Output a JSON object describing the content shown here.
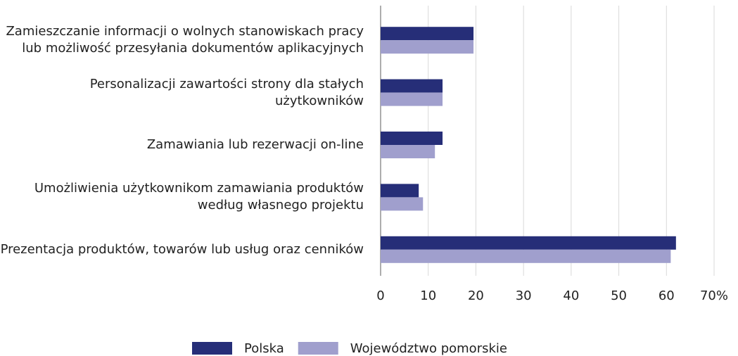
{
  "chart_data": {
    "type": "hbar",
    "categories": [
      "Zamieszczanie informacji o wolnych stanowiskach pracy lub możliwość przesyłania dokumentów aplikacyjnych",
      "Personalizacji zawartości strony dla stałych użytkowników",
      "Zamawiania lub rezerwacji on-line",
      "Umożliwienia użytkownikom zamawiania produktów według własnego projektu",
      "Prezentacja produktów, towarów lub usług oraz cenników"
    ],
    "series": [
      {
        "name": "Polska",
        "color": "#262e78",
        "values": [
          19.5,
          13,
          13,
          8,
          62
        ]
      },
      {
        "name": "Województwo pomorskie",
        "color": "#a09fcd",
        "values": [
          19.5,
          13,
          11.4,
          8.9,
          60.9
        ]
      }
    ],
    "xlim": [
      0,
      70
    ],
    "xticks": [
      0,
      10,
      20,
      30,
      40,
      50,
      60,
      {
        "value": 70,
        "label": "70%"
      }
    ],
    "grid": true,
    "legend": "bottom"
  }
}
